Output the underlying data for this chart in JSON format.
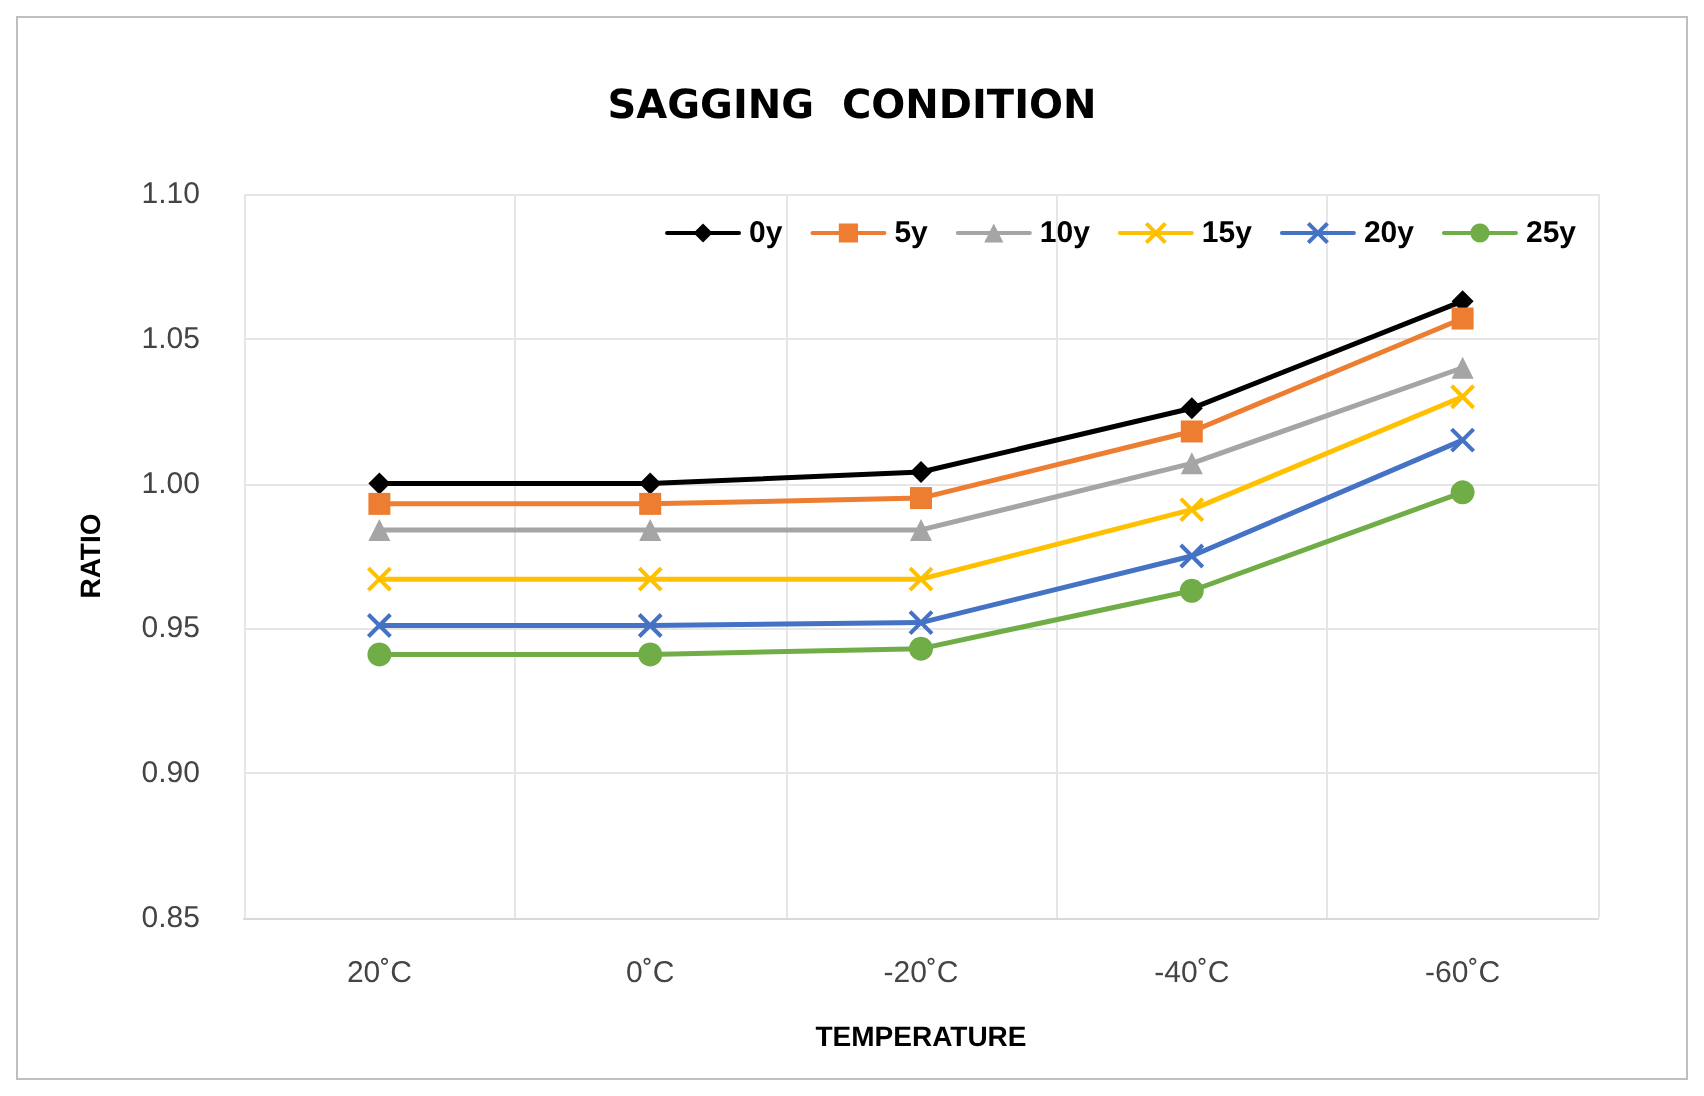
{
  "chart_data": {
    "type": "line",
    "title": "SAGGING  CONDITION",
    "xlabel": "TEMPERATURE",
    "ylabel": "RATIO",
    "categories": [
      "20˚C",
      "0˚C",
      "-20˚C",
      "-40˚C",
      "-60˚C"
    ],
    "ylim": [
      0.85,
      1.1
    ],
    "yticks": [
      {
        "value": 0.85,
        "label": "0.85"
      },
      {
        "value": 0.9,
        "label": "0.90"
      },
      {
        "value": 0.95,
        "label": "0.95"
      },
      {
        "value": 1.0,
        "label": "1.00"
      },
      {
        "value": 1.05,
        "label": "1.05"
      },
      {
        "value": 1.1,
        "label": "1.10"
      }
    ],
    "grid": true,
    "legend": "top right",
    "line_style": "solid",
    "series": [
      {
        "name": "0y",
        "color": "#000000",
        "marker": "diamond",
        "values": [
          1.0,
          1.0,
          1.004,
          1.026,
          1.063
        ]
      },
      {
        "name": "5y",
        "color": "#ed7d31",
        "marker": "square",
        "values": [
          0.993,
          0.993,
          0.995,
          1.018,
          1.057
        ]
      },
      {
        "name": "10y",
        "color": "#a5a5a5",
        "marker": "triangle",
        "values": [
          0.984,
          0.984,
          0.984,
          1.007,
          1.04
        ]
      },
      {
        "name": "15y",
        "color": "#ffc000",
        "marker": "cross",
        "values": [
          0.967,
          0.967,
          0.967,
          0.991,
          1.03
        ]
      },
      {
        "name": "20y",
        "color": "#4472c4",
        "marker": "cross",
        "values": [
          0.951,
          0.951,
          0.952,
          0.975,
          1.015
        ]
      },
      {
        "name": "25y",
        "color": "#70ad47",
        "marker": "circle",
        "values": [
          0.941,
          0.941,
          0.943,
          0.963,
          0.997
        ]
      }
    ]
  }
}
